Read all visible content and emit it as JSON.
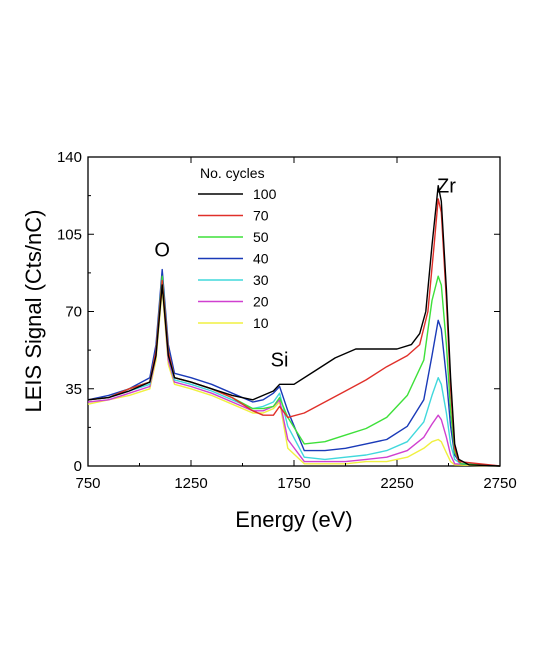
{
  "chart_data": {
    "type": "line",
    "xlabel": "Energy (eV)",
    "ylabel": "LEIS Signal (Cts/nC)",
    "xlim": [
      750,
      2750
    ],
    "ylim": [
      0,
      140
    ],
    "xticks": [
      750,
      1250,
      1750,
      2250,
      2750
    ],
    "yticks": [
      0,
      35,
      70,
      105,
      140
    ],
    "grid": false,
    "legend": {
      "title": "No. cycles",
      "placement": "top-left"
    },
    "annotations": [
      {
        "text": "O",
        "x": 1110,
        "y": 95
      },
      {
        "text": "Si",
        "x": 1680,
        "y": 45
      },
      {
        "text": "Zr",
        "x": 2490,
        "y": 124
      }
    ],
    "series": [
      {
        "name": "100",
        "color": "#000000",
        "points": [
          [
            750,
            30
          ],
          [
            850,
            31
          ],
          [
            950,
            34
          ],
          [
            1050,
            38
          ],
          [
            1080,
            50
          ],
          [
            1110,
            82
          ],
          [
            1140,
            50
          ],
          [
            1170,
            40
          ],
          [
            1250,
            38
          ],
          [
            1350,
            35
          ],
          [
            1450,
            32
          ],
          [
            1550,
            30
          ],
          [
            1600,
            32
          ],
          [
            1650,
            34
          ],
          [
            1680,
            37
          ],
          [
            1750,
            37
          ],
          [
            1850,
            43
          ],
          [
            1950,
            49
          ],
          [
            2050,
            53
          ],
          [
            2150,
            53
          ],
          [
            2250,
            53
          ],
          [
            2320,
            55
          ],
          [
            2360,
            60
          ],
          [
            2390,
            70
          ],
          [
            2420,
            100
          ],
          [
            2450,
            127
          ],
          [
            2465,
            120
          ],
          [
            2490,
            80
          ],
          [
            2510,
            40
          ],
          [
            2530,
            10
          ],
          [
            2550,
            3
          ],
          [
            2600,
            0.5
          ],
          [
            2750,
            0
          ]
        ]
      },
      {
        "name": "70",
        "color": "#e0302a",
        "points": [
          [
            750,
            30
          ],
          [
            850,
            31
          ],
          [
            950,
            35
          ],
          [
            1050,
            38
          ],
          [
            1080,
            52
          ],
          [
            1110,
            84
          ],
          [
            1140,
            52
          ],
          [
            1170,
            40
          ],
          [
            1250,
            38
          ],
          [
            1350,
            35
          ],
          [
            1450,
            31
          ],
          [
            1550,
            25
          ],
          [
            1600,
            23
          ],
          [
            1650,
            23
          ],
          [
            1680,
            27
          ],
          [
            1720,
            22
          ],
          [
            1800,
            24
          ],
          [
            1900,
            29
          ],
          [
            2000,
            34
          ],
          [
            2100,
            39
          ],
          [
            2200,
            45
          ],
          [
            2300,
            50
          ],
          [
            2360,
            55
          ],
          [
            2400,
            70
          ],
          [
            2430,
            100
          ],
          [
            2450,
            121
          ],
          [
            2465,
            115
          ],
          [
            2490,
            75
          ],
          [
            2510,
            35
          ],
          [
            2530,
            8
          ],
          [
            2550,
            2
          ],
          [
            2750,
            0
          ]
        ]
      },
      {
        "name": "50",
        "color": "#3ee03a",
        "points": [
          [
            750,
            30
          ],
          [
            850,
            31
          ],
          [
            950,
            35
          ],
          [
            1050,
            38
          ],
          [
            1080,
            52
          ],
          [
            1110,
            86
          ],
          [
            1140,
            52
          ],
          [
            1170,
            40
          ],
          [
            1250,
            38
          ],
          [
            1350,
            35
          ],
          [
            1450,
            31
          ],
          [
            1550,
            26
          ],
          [
            1600,
            26
          ],
          [
            1650,
            27
          ],
          [
            1680,
            31
          ],
          [
            1720,
            22
          ],
          [
            1800,
            10
          ],
          [
            1900,
            11
          ],
          [
            2000,
            14
          ],
          [
            2100,
            17
          ],
          [
            2200,
            22
          ],
          [
            2300,
            32
          ],
          [
            2380,
            48
          ],
          [
            2420,
            75
          ],
          [
            2450,
            86
          ],
          [
            2465,
            82
          ],
          [
            2490,
            55
          ],
          [
            2510,
            25
          ],
          [
            2530,
            6
          ],
          [
            2560,
            1
          ],
          [
            2750,
            0
          ]
        ]
      },
      {
        "name": "40",
        "color": "#1a3ab8",
        "points": [
          [
            750,
            30
          ],
          [
            850,
            32
          ],
          [
            950,
            35
          ],
          [
            1050,
            40
          ],
          [
            1080,
            55
          ],
          [
            1110,
            89
          ],
          [
            1140,
            55
          ],
          [
            1170,
            42
          ],
          [
            1250,
            40
          ],
          [
            1350,
            37
          ],
          [
            1450,
            33
          ],
          [
            1550,
            29
          ],
          [
            1600,
            30
          ],
          [
            1650,
            33
          ],
          [
            1680,
            36
          ],
          [
            1720,
            25
          ],
          [
            1800,
            7
          ],
          [
            1900,
            7
          ],
          [
            2000,
            8
          ],
          [
            2100,
            10
          ],
          [
            2200,
            12
          ],
          [
            2300,
            18
          ],
          [
            2380,
            30
          ],
          [
            2420,
            50
          ],
          [
            2450,
            66
          ],
          [
            2465,
            62
          ],
          [
            2490,
            40
          ],
          [
            2510,
            18
          ],
          [
            2530,
            5
          ],
          [
            2560,
            1
          ],
          [
            2750,
            0
          ]
        ]
      },
      {
        "name": "30",
        "color": "#40d8dc",
        "points": [
          [
            750,
            30
          ],
          [
            850,
            31
          ],
          [
            950,
            34
          ],
          [
            1050,
            37
          ],
          [
            1080,
            52
          ],
          [
            1110,
            85
          ],
          [
            1140,
            50
          ],
          [
            1170,
            39
          ],
          [
            1250,
            37
          ],
          [
            1350,
            34
          ],
          [
            1450,
            30
          ],
          [
            1550,
            26
          ],
          [
            1600,
            27
          ],
          [
            1650,
            29
          ],
          [
            1680,
            33
          ],
          [
            1720,
            18
          ],
          [
            1800,
            4
          ],
          [
            1900,
            3
          ],
          [
            2000,
            4
          ],
          [
            2100,
            5
          ],
          [
            2200,
            7
          ],
          [
            2300,
            11
          ],
          [
            2380,
            20
          ],
          [
            2420,
            32
          ],
          [
            2450,
            40
          ],
          [
            2465,
            37
          ],
          [
            2490,
            24
          ],
          [
            2510,
            10
          ],
          [
            2530,
            3
          ],
          [
            2560,
            1
          ],
          [
            2750,
            0
          ]
        ]
      },
      {
        "name": "20",
        "color": "#d040d0",
        "points": [
          [
            750,
            29
          ],
          [
            850,
            30
          ],
          [
            950,
            33
          ],
          [
            1050,
            36
          ],
          [
            1080,
            50
          ],
          [
            1110,
            83
          ],
          [
            1140,
            48
          ],
          [
            1170,
            38
          ],
          [
            1250,
            36
          ],
          [
            1350,
            33
          ],
          [
            1450,
            29
          ],
          [
            1550,
            25
          ],
          [
            1600,
            25
          ],
          [
            1650,
            27
          ],
          [
            1680,
            30
          ],
          [
            1720,
            12
          ],
          [
            1800,
            2
          ],
          [
            1900,
            2
          ],
          [
            2000,
            2
          ],
          [
            2100,
            3
          ],
          [
            2200,
            4
          ],
          [
            2300,
            7
          ],
          [
            2380,
            13
          ],
          [
            2420,
            19
          ],
          [
            2450,
            23
          ],
          [
            2465,
            21
          ],
          [
            2490,
            13
          ],
          [
            2510,
            5
          ],
          [
            2530,
            1
          ],
          [
            2750,
            0
          ]
        ]
      },
      {
        "name": "10",
        "color": "#f0f040",
        "points": [
          [
            750,
            28
          ],
          [
            850,
            30
          ],
          [
            950,
            32
          ],
          [
            1050,
            35
          ],
          [
            1080,
            48
          ],
          [
            1110,
            80
          ],
          [
            1140,
            46
          ],
          [
            1170,
            37
          ],
          [
            1250,
            35
          ],
          [
            1350,
            32
          ],
          [
            1450,
            28
          ],
          [
            1550,
            24
          ],
          [
            1600,
            24
          ],
          [
            1650,
            26
          ],
          [
            1680,
            29
          ],
          [
            1720,
            8
          ],
          [
            1800,
            1
          ],
          [
            1900,
            1
          ],
          [
            2000,
            1
          ],
          [
            2100,
            2
          ],
          [
            2200,
            2
          ],
          [
            2300,
            4
          ],
          [
            2380,
            8
          ],
          [
            2420,
            11
          ],
          [
            2450,
            12
          ],
          [
            2465,
            11
          ],
          [
            2490,
            6
          ],
          [
            2510,
            2
          ],
          [
            2530,
            0.5
          ],
          [
            2750,
            0
          ]
        ]
      }
    ]
  }
}
